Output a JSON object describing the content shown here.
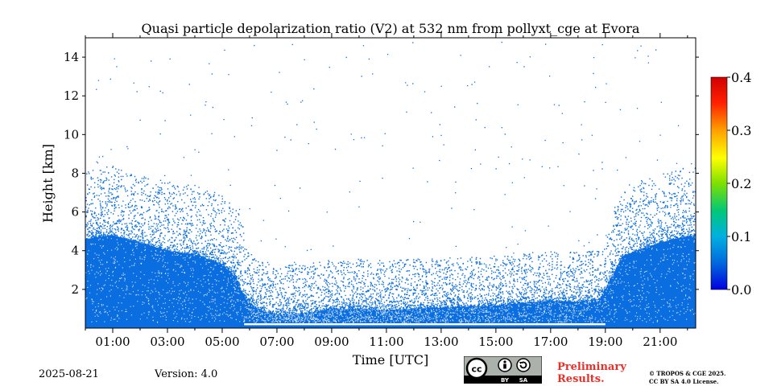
{
  "chart_data": {
    "type": "heatmap",
    "title": "Quasi particle depolarization ratio (V2) at 532 nm from pollyxt_cge at Evora",
    "xlabel": "Time [UTC]",
    "ylabel": "Height [km]",
    "xlim_hours": [
      0.0,
      22.3
    ],
    "ylim_km": [
      0.0,
      15.0
    ],
    "x_ticks": [
      {
        "h": 1,
        "label": "01:00"
      },
      {
        "h": 3,
        "label": "03:00"
      },
      {
        "h": 5,
        "label": "05:00"
      },
      {
        "h": 7,
        "label": "07:00"
      },
      {
        "h": 9,
        "label": "09:00"
      },
      {
        "h": 11,
        "label": "11:00"
      },
      {
        "h": 13,
        "label": "13:00"
      },
      {
        "h": 15,
        "label": "15:00"
      },
      {
        "h": 17,
        "label": "17:00"
      },
      {
        "h": 19,
        "label": "19:00"
      },
      {
        "h": 21,
        "label": "21:00"
      }
    ],
    "y_ticks": [
      {
        "v": 2,
        "label": "2"
      },
      {
        "v": 4,
        "label": "4"
      },
      {
        "v": 6,
        "label": "6"
      },
      {
        "v": 8,
        "label": "8"
      },
      {
        "v": 10,
        "label": "10"
      },
      {
        "v": 12,
        "label": "12"
      },
      {
        "v": 14,
        "label": "14"
      }
    ],
    "colorbar": {
      "range": [
        0.0,
        0.4
      ],
      "ticks": [
        {
          "v": 0.0,
          "label": "0.0"
        },
        {
          "v": 0.1,
          "label": "0.1"
        },
        {
          "v": 0.2,
          "label": "0.2"
        },
        {
          "v": 0.3,
          "label": "0.3"
        },
        {
          "v": 0.4,
          "label": "0.4"
        }
      ],
      "colormap": [
        "#0000e0",
        "#0066dd",
        "#00b0e0",
        "#00c878",
        "#7fe000",
        "#ffff00",
        "#ffa000",
        "#ff2000",
        "#d00000"
      ]
    },
    "field_value": 0.02,
    "field_color": "#0a6ee0",
    "signal_top_profile_km": [
      {
        "h": 0.0,
        "top": 4.6
      },
      {
        "h": 1.0,
        "top": 4.8
      },
      {
        "h": 2.0,
        "top": 4.4
      },
      {
        "h": 3.0,
        "top": 4.0
      },
      {
        "h": 4.0,
        "top": 3.8
      },
      {
        "h": 5.0,
        "top": 3.3
      },
      {
        "h": 5.5,
        "top": 2.6
      },
      {
        "h": 5.9,
        "top": 1.4
      },
      {
        "h": 6.4,
        "top": 0.9
      },
      {
        "h": 7.0,
        "top": 0.7
      },
      {
        "h": 8.0,
        "top": 0.75
      },
      {
        "h": 9.0,
        "top": 0.95
      },
      {
        "h": 10.0,
        "top": 1.0
      },
      {
        "h": 11.0,
        "top": 0.9
      },
      {
        "h": 12.0,
        "top": 1.0
      },
      {
        "h": 13.0,
        "top": 1.05
      },
      {
        "h": 14.0,
        "top": 1.1
      },
      {
        "h": 15.0,
        "top": 1.15
      },
      {
        "h": 16.0,
        "top": 1.3
      },
      {
        "h": 17.0,
        "top": 1.4
      },
      {
        "h": 18.0,
        "top": 1.35
      },
      {
        "h": 18.8,
        "top": 1.5
      },
      {
        "h": 19.3,
        "top": 2.8
      },
      {
        "h": 19.6,
        "top": 3.7
      },
      {
        "h": 20.5,
        "top": 4.2
      },
      {
        "h": 21.5,
        "top": 4.6
      },
      {
        "h": 22.3,
        "top": 4.8
      }
    ],
    "gap_band_km": [
      0.15,
      0.25
    ],
    "gap_band_hours": [
      5.8,
      19.0
    ]
  },
  "footer": {
    "date": "2025-08-21",
    "version": "Version: 4.0",
    "preliminary_line1": "Preliminary",
    "preliminary_line2": "Results.",
    "copyright_line1": "© TROPOS & CGE 2025.",
    "copyright_line2": "CC BY SA 4.0 License.",
    "license_badge": {
      "cc": "cc",
      "by": "BY",
      "sa": "SA"
    }
  }
}
